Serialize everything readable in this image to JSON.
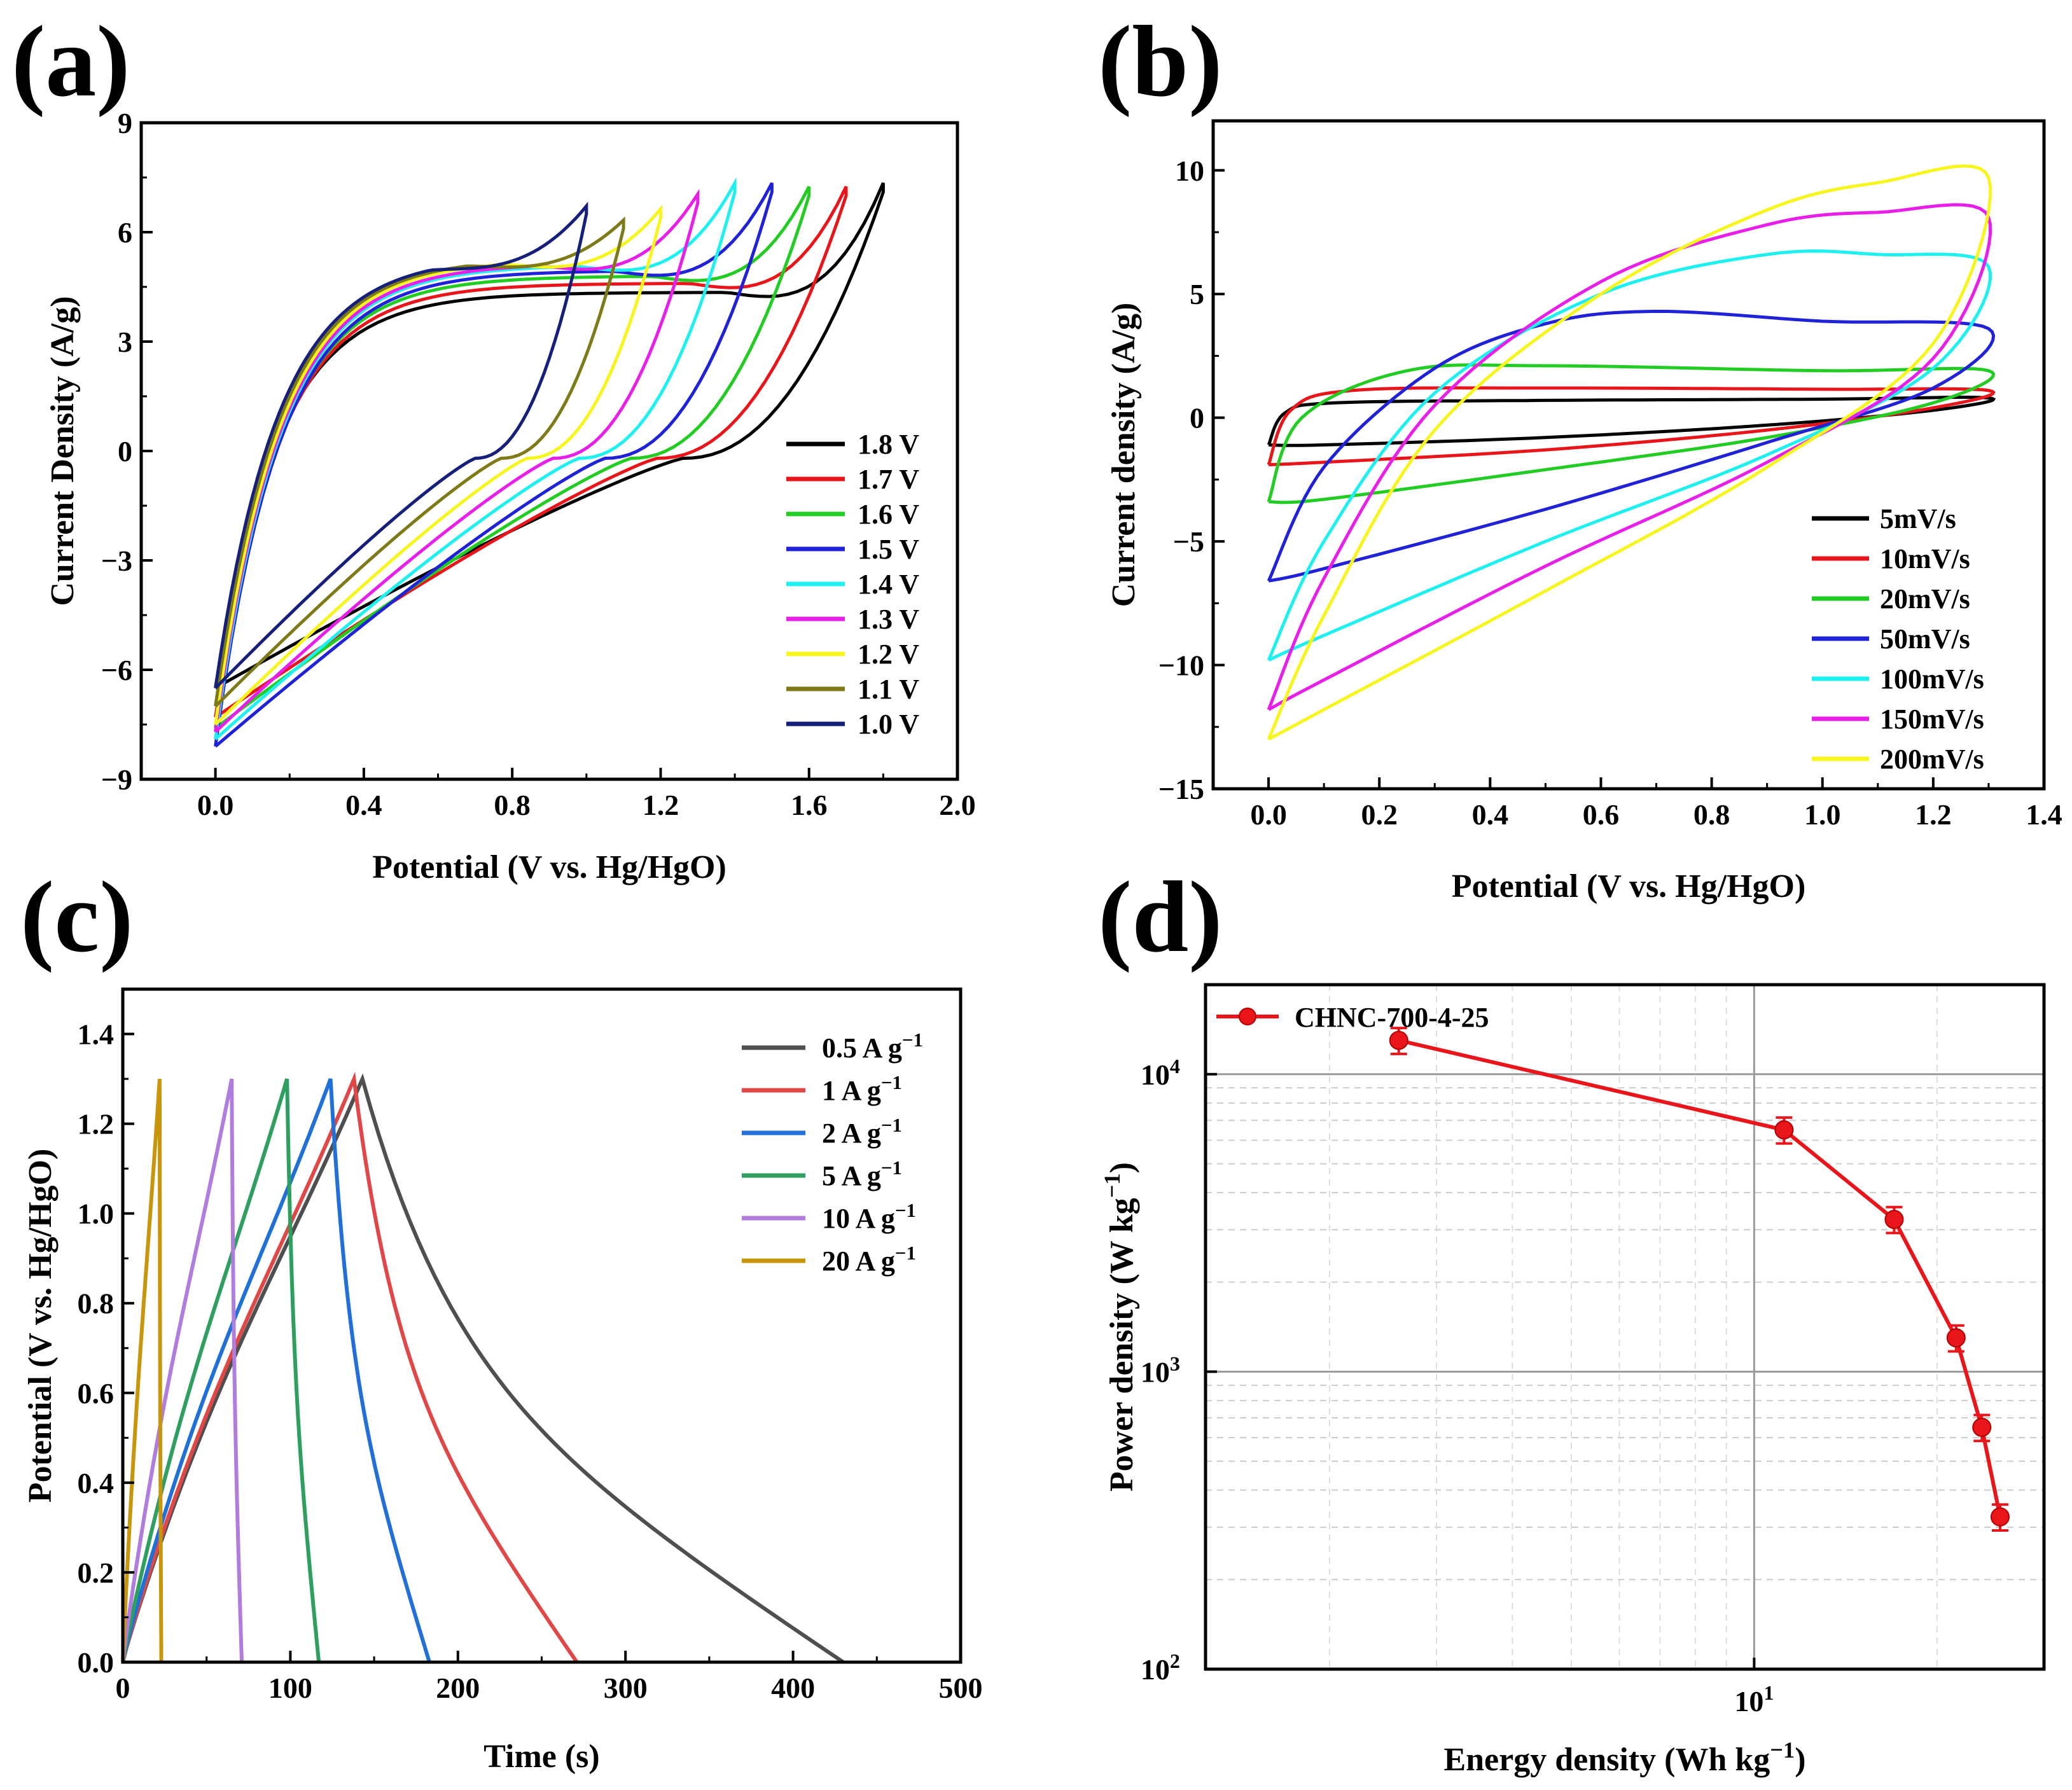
{
  "figure": {
    "panel_labels": [
      "(a)",
      "(b)",
      "(c)",
      "(d)"
    ]
  },
  "colors": {
    "black": "#000000",
    "red": "#e8161b",
    "green": "#22cc22",
    "blue": "#1f22d6",
    "cyan": "#1ef0f0",
    "magenta": "#e81fe8",
    "yellow": "#f7f51e",
    "olive": "#7d7a17",
    "navy": "#161f7a",
    "c_grey": "#4f4f4f",
    "c_red": "#e04848",
    "c_blue": "#2070d8",
    "c_green": "#2e9f5f",
    "c_purple": "#b07cdd",
    "c_gold": "#c9950d"
  },
  "chart_data": [
    {
      "id": "a",
      "type": "line",
      "title": "",
      "xlabel": "Potential (V vs. Hg/HgO)",
      "ylabel": "Current Density (A/g)",
      "xlim": [
        -0.2,
        2.0
      ],
      "ylim": [
        -9,
        9
      ],
      "xticks": [
        0.0,
        0.4,
        0.8,
        1.2,
        1.6,
        2.0
      ],
      "xtick_labels": [
        "0.0",
        "0.4",
        "0.8",
        "1.2",
        "1.6",
        "2.0"
      ],
      "yticks": [
        -9,
        -6,
        -3,
        0,
        3,
        6,
        9
      ],
      "ytick_labels": [
        "−9",
        "−6",
        "−3",
        "0",
        "3",
        "6",
        "9"
      ],
      "legend_position": "right",
      "series": [
        {
          "name": "1.8 V",
          "color": "#000000",
          "vmax": 1.8,
          "plateau": 4.1,
          "peak": 7.1,
          "min": -6.5
        },
        {
          "name": "1.7 V",
          "color": "#e8161b",
          "vmax": 1.7,
          "plateau": 4.35,
          "peak": 7.0,
          "min": -7.3
        },
        {
          "name": "1.6 V",
          "color": "#22cc22",
          "vmax": 1.6,
          "plateau": 4.55,
          "peak": 7.0,
          "min": -7.6
        },
        {
          "name": "1.5 V",
          "color": "#1f22d6",
          "vmax": 1.5,
          "plateau": 4.7,
          "peak": 7.1,
          "min": -8.1
        },
        {
          "name": "1.4 V",
          "color": "#1ef0f0",
          "vmax": 1.4,
          "plateau": 4.85,
          "peak": 7.1,
          "min": -7.9
        },
        {
          "name": "1.3 V",
          "color": "#e81fe8",
          "vmax": 1.3,
          "plateau": 4.9,
          "peak": 6.8,
          "min": -7.7
        },
        {
          "name": "1.2 V",
          "color": "#f7f51e",
          "vmax": 1.2,
          "plateau": 5.0,
          "peak": 6.4,
          "min": -7.5
        },
        {
          "name": "1.1 V",
          "color": "#7d7a17",
          "vmax": 1.1,
          "plateau": 5.05,
          "peak": 6.1,
          "min": -7.0
        },
        {
          "name": "1.0 V",
          "color": "#161f7a",
          "vmax": 1.0,
          "plateau": 5.1,
          "peak": 6.5,
          "min": -6.5
        }
      ]
    },
    {
      "id": "b",
      "type": "line",
      "title": "",
      "xlabel": "Potential (V vs. Hg/HgO)",
      "ylabel": "Current density (A/g)",
      "xlim": [
        -0.1,
        1.4
      ],
      "ylim": [
        -15,
        12
      ],
      "xticks": [
        0.0,
        0.2,
        0.4,
        0.6,
        0.8,
        1.0,
        1.2,
        1.4
      ],
      "xtick_labels": [
        "0.0",
        "0.2",
        "0.4",
        "0.6",
        "0.8",
        "1.0",
        "1.2",
        "1.4"
      ],
      "yticks": [
        -15,
        -10,
        -5,
        0,
        5,
        10
      ],
      "ytick_labels": [
        "−15",
        "−10",
        "−5",
        "0",
        "5",
        "10"
      ],
      "legend_position": "bottom-right",
      "series": [
        {
          "name": "5mV/s",
          "color": "#000000",
          "upper": [
            [
              0.0,
              -1.1
            ],
            [
              0.03,
              0.2
            ],
            [
              0.12,
              0.6
            ],
            [
              0.5,
              0.7
            ],
            [
              1.0,
              0.75
            ],
            [
              1.3,
              0.8
            ]
          ],
          "lower": [
            [
              1.3,
              0.8
            ],
            [
              1.2,
              0.3
            ],
            [
              0.9,
              -0.3
            ],
            [
              0.5,
              -0.8
            ],
            [
              0.1,
              -1.1
            ],
            [
              0.0,
              -1.1
            ]
          ]
        },
        {
          "name": "10mV/s",
          "color": "#e8161b",
          "upper": [
            [
              0.0,
              -1.9
            ],
            [
              0.04,
              0.3
            ],
            [
              0.15,
              1.1
            ],
            [
              0.5,
              1.2
            ],
            [
              1.0,
              1.15
            ],
            [
              1.3,
              1.1
            ]
          ],
          "lower": [
            [
              1.3,
              1.1
            ],
            [
              1.2,
              0.4
            ],
            [
              0.9,
              -0.5
            ],
            [
              0.5,
              -1.3
            ],
            [
              0.1,
              -1.8
            ],
            [
              0.0,
              -1.9
            ]
          ]
        },
        {
          "name": "20mV/s",
          "color": "#22cc22",
          "upper": [
            [
              0.0,
              -3.4
            ],
            [
              0.06,
              0.0
            ],
            [
              0.25,
              1.9
            ],
            [
              0.5,
              2.1
            ],
            [
              1.0,
              1.9
            ],
            [
              1.3,
              1.9
            ]
          ],
          "lower": [
            [
              1.3,
              1.9
            ],
            [
              1.2,
              0.6
            ],
            [
              0.9,
              -0.8
            ],
            [
              0.5,
              -2.1
            ],
            [
              0.1,
              -3.3
            ],
            [
              0.0,
              -3.4
            ]
          ]
        },
        {
          "name": "50mV/s",
          "color": "#1f22d6",
          "upper": [
            [
              0.0,
              -6.6
            ],
            [
              0.1,
              -2.0
            ],
            [
              0.3,
              2.0
            ],
            [
              0.5,
              3.8
            ],
            [
              0.7,
              4.3
            ],
            [
              1.0,
              3.9
            ],
            [
              1.3,
              3.6
            ]
          ],
          "lower": [
            [
              1.3,
              3.6
            ],
            [
              1.2,
              1.2
            ],
            [
              0.9,
              -1.0
            ],
            [
              0.5,
              -3.7
            ],
            [
              0.1,
              -6.1
            ],
            [
              0.0,
              -6.6
            ]
          ]
        },
        {
          "name": "100mV/s",
          "color": "#1ef0f0",
          "upper": [
            [
              0.0,
              -9.8
            ],
            [
              0.1,
              -5.0
            ],
            [
              0.3,
              1.0
            ],
            [
              0.6,
              5.0
            ],
            [
              0.9,
              6.6
            ],
            [
              1.1,
              6.6
            ],
            [
              1.3,
              6.1
            ]
          ],
          "lower": [
            [
              1.3,
              6.1
            ],
            [
              1.2,
              2.0
            ],
            [
              0.9,
              -1.5
            ],
            [
              0.5,
              -5.0
            ],
            [
              0.1,
              -8.8
            ],
            [
              0.0,
              -9.8
            ]
          ]
        },
        {
          "name": "150mV/s",
          "color": "#e81fe8",
          "upper": [
            [
              0.0,
              -11.8
            ],
            [
              0.1,
              -6.5
            ],
            [
              0.3,
              0.5
            ],
            [
              0.6,
              5.5
            ],
            [
              0.9,
              7.8
            ],
            [
              1.1,
              8.3
            ],
            [
              1.3,
              8.1
            ]
          ],
          "lower": [
            [
              1.3,
              8.1
            ],
            [
              1.2,
              2.4
            ],
            [
              0.9,
              -1.8
            ],
            [
              0.5,
              -6.0
            ],
            [
              0.1,
              -10.6
            ],
            [
              0.0,
              -11.8
            ]
          ]
        },
        {
          "name": "200mV/s",
          "color": "#f7f51e",
          "upper": [
            [
              0.0,
              -13.0
            ],
            [
              0.1,
              -8.0
            ],
            [
              0.3,
              -0.5
            ],
            [
              0.6,
              5.0
            ],
            [
              0.9,
              8.4
            ],
            [
              1.1,
              9.5
            ],
            [
              1.3,
              9.7
            ]
          ],
          "lower": [
            [
              1.3,
              9.7
            ],
            [
              1.2,
              3.0
            ],
            [
              0.9,
              -2.0
            ],
            [
              0.5,
              -7.0
            ],
            [
              0.1,
              -11.8
            ],
            [
              0.0,
              -13.0
            ]
          ]
        }
      ]
    },
    {
      "id": "c",
      "type": "line",
      "title": "",
      "xlabel": "Time (s)",
      "ylabel": "Potential  (V vs. Hg/HgO)",
      "xlim": [
        0,
        500
      ],
      "ylim": [
        0.0,
        1.5
      ],
      "xticks": [
        0,
        100,
        200,
        300,
        400,
        500
      ],
      "xtick_labels": [
        "0",
        "100",
        "200",
        "300",
        "400",
        "500"
      ],
      "yticks": [
        0.0,
        0.2,
        0.4,
        0.6,
        0.8,
        1.0,
        1.2,
        1.4
      ],
      "ytick_labels": [
        "0.0",
        "0.2",
        "0.4",
        "0.6",
        "0.8",
        "1.0",
        "1.2",
        "1.4"
      ],
      "legend_position": "top-right",
      "series": [
        {
          "name": "0.5 A g",
          "sup": "−1",
          "color": "#4f4f4f",
          "t_peak": 143,
          "t_end": 430,
          "v_peak": 1.3
        },
        {
          "name": "1 A g",
          "sup": "−1",
          "color": "#e04848",
          "t_peak": 138,
          "t_end": 271,
          "v_peak": 1.3
        },
        {
          "name": "2 A g",
          "sup": "−1",
          "color": "#2070d8",
          "t_peak": 124,
          "t_end": 183,
          "v_peak": 1.3
        },
        {
          "name": "5 A g",
          "sup": "−1",
          "color": "#2e9f5f",
          "t_peak": 98,
          "t_end": 117,
          "v_peak": 1.3
        },
        {
          "name": "10 A g",
          "sup": "−1",
          "color": "#b07cdd",
          "t_peak": 65,
          "t_end": 71,
          "v_peak": 1.3
        },
        {
          "name": "20 A g",
          "sup": "−1",
          "color": "#c9950d",
          "t_peak": 22,
          "t_end": 23,
          "v_peak": 1.3
        }
      ]
    },
    {
      "id": "d",
      "type": "scatter",
      "title": "",
      "xlabel": "Energy density (Wh kg",
      "xlabel_sup": "−1",
      "xlabel_tail": ")",
      "ylabel": "Power density (W kg",
      "ylabel_sup": "−1",
      "ylabel_tail": ")",
      "xscale": "log",
      "yscale": "log",
      "xlim": [
        1.25,
        30
      ],
      "ylim": [
        100,
        20000
      ],
      "xtick_label": {
        "base": "10",
        "exp": "1"
      },
      "ytick_labels": [
        {
          "base": "10",
          "exp": "2"
        },
        {
          "base": "10",
          "exp": "3"
        },
        {
          "base": "10",
          "exp": "4"
        }
      ],
      "legend_position": "top-left",
      "series": [
        {
          "name": "CHNC-700-4-25",
          "color": "#e8161b",
          "x": [
            2.6,
            11.2,
            17.0,
            21.5,
            23.7,
            25.4
          ],
          "y": [
            13000,
            6500,
            3250,
            1300,
            650,
            325
          ],
          "err_rel": 0.1
        }
      ]
    }
  ]
}
